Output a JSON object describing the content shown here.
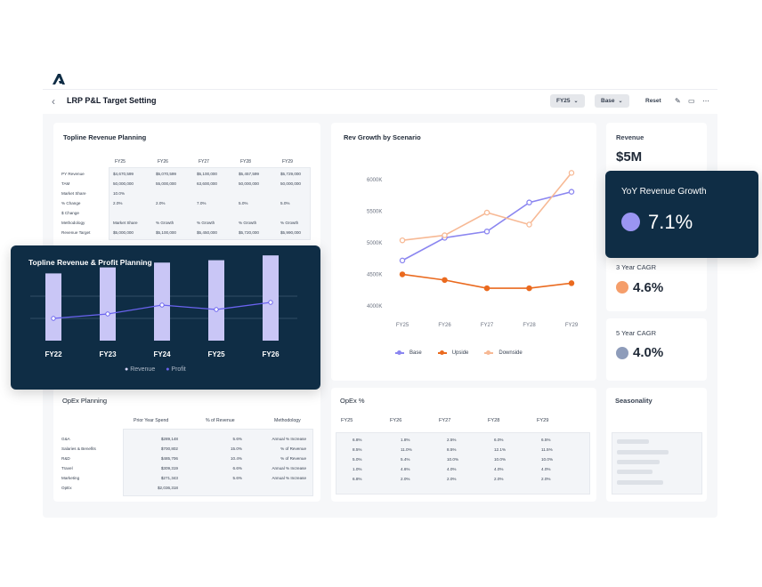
{
  "header": {
    "title": "LRP P&L Target Setting",
    "year_selector": "FY25",
    "scenario_selector": "Base",
    "reset_label": "Reset"
  },
  "topline": {
    "title": "Topline Revenue Planning",
    "years": [
      "FY25",
      "FY26",
      "FY27",
      "FY28",
      "FY29"
    ],
    "rows": [
      {
        "label": "PY Revenue",
        "values": [
          "$4,670,599",
          "$5,070,599",
          "$5,100,000",
          "$5,457,599",
          "$5,729,000"
        ]
      },
      {
        "label": "TAM",
        "values": [
          "50,000,000",
          "55,000,000",
          "63,600,000",
          "50,000,000",
          "50,000,000"
        ]
      },
      {
        "label": "Market Share",
        "values": [
          "10.0%",
          "",
          "",
          "",
          ""
        ]
      },
      {
        "label": "% Change",
        "values": [
          "2.0%",
          "2.0%",
          "7.0%",
          "5.0%",
          "5.0%"
        ]
      },
      {
        "label": "$ Change",
        "values": [
          "",
          "",
          "",
          "",
          ""
        ]
      },
      {
        "label": "Methodology",
        "values": [
          "Market Share",
          "% Growth",
          "% Growth",
          "% Growth",
          "% Growth"
        ]
      },
      {
        "label": "Revenue Target",
        "values": [
          "$5,000,000",
          "$5,100,000",
          "$5,450,000",
          "$5,720,000",
          "$5,990,000"
        ]
      }
    ]
  },
  "profit_card": {
    "title": "Topline Revenue & Profit Planning",
    "legend_revenue": "Revenue",
    "legend_profit": "Profit"
  },
  "rev_growth": {
    "title": "Rev Growth by Scenario"
  },
  "kpis": {
    "revenue_label": "Revenue",
    "revenue_value": "$5M",
    "yoy_label": "YoY Revenue Growth",
    "yoy_value": "7.1%",
    "cagr3_label": "3 Year CAGR",
    "cagr3_value": "4.6%",
    "cagr5_label": "5 Year CAGR",
    "cagr5_value": "4.0%",
    "seasonality_label": "Seasonality"
  },
  "opex": {
    "title": "OpEx Planning",
    "headers": [
      "Prior Year Spend",
      "% of Revenue",
      "Methodology"
    ],
    "rows": [
      {
        "label": "G&A",
        "spend": "$289,148",
        "pct": "5.6%",
        "method": "Annual % Increase"
      },
      {
        "label": "Salaries & Benefits",
        "spend": "$700,802",
        "pct": "15.0%",
        "method": "% of Revenue"
      },
      {
        "label": "R&D",
        "spend": "$485,706",
        "pct": "10.4%",
        "method": "% of Revenue"
      },
      {
        "label": "Travel",
        "spend": "$309,319",
        "pct": "6.6%",
        "method": "Annual % Increase"
      },
      {
        "label": "Marketing",
        "spend": "$271,343",
        "pct": "5.6%",
        "method": "Annual % Increase"
      },
      {
        "label": "OpEx",
        "spend": "$2,036,318",
        "pct": "",
        "method": ""
      }
    ]
  },
  "opex_pct": {
    "title": "OpEx %",
    "years": [
      "FY25",
      "FY26",
      "FY27",
      "FY28",
      "FY29"
    ],
    "rows": [
      [
        "6.8%",
        "1.8%",
        "2.5%",
        "6.0%",
        "6.5%"
      ],
      [
        "8.5%",
        "11.0%",
        "8.5%",
        "12.1%",
        "11.5%"
      ],
      [
        "5.0%",
        "5.4%",
        "10.0%",
        "10.0%",
        "10.0%"
      ],
      [
        "1.0%",
        "4.6%",
        "4.0%",
        "4.0%",
        "4.0%"
      ],
      [
        "6.8%",
        "2.0%",
        "2.0%",
        "2.0%",
        "2.0%"
      ]
    ]
  },
  "colors": {
    "base": "#8b86f0",
    "upside": "#ea6a1f",
    "downside": "#f7b995",
    "dark": "#0f2d45",
    "bar": "#c9c6f6",
    "cagr3": "#f59e6b",
    "cagr5": "#8e9cba"
  },
  "chart_data": [
    {
      "type": "line",
      "title": "Rev Growth by Scenario",
      "x": [
        "FY25",
        "FY26",
        "FY27",
        "FY28",
        "FY29"
      ],
      "yticks": [
        "4000K",
        "4500K",
        "5000K",
        "5500K",
        "6000K"
      ],
      "ylim": [
        3900,
        6200
      ],
      "series": [
        {
          "name": "Base",
          "values": [
            4720,
            5080,
            5180,
            5640,
            5810
          ]
        },
        {
          "name": "Upside",
          "values": [
            4500,
            4410,
            4280,
            4280,
            4360
          ]
        },
        {
          "name": "Downside",
          "values": [
            5040,
            5120,
            5480,
            5290,
            6110
          ]
        }
      ],
      "legend": "bottom"
    },
    {
      "type": "bar",
      "title": "Topline Revenue & Profit Planning",
      "categories": [
        "FY22",
        "FY23",
        "FY24",
        "FY25",
        "FY26"
      ],
      "ylim": [
        0,
        100
      ],
      "series": [
        {
          "name": "Revenue",
          "values": [
            56,
            61,
            65,
            67,
            71
          ]
        },
        {
          "name": "Profit",
          "values": [
            25,
            30,
            40,
            35,
            43
          ]
        }
      ],
      "legend": "bottom"
    }
  ]
}
